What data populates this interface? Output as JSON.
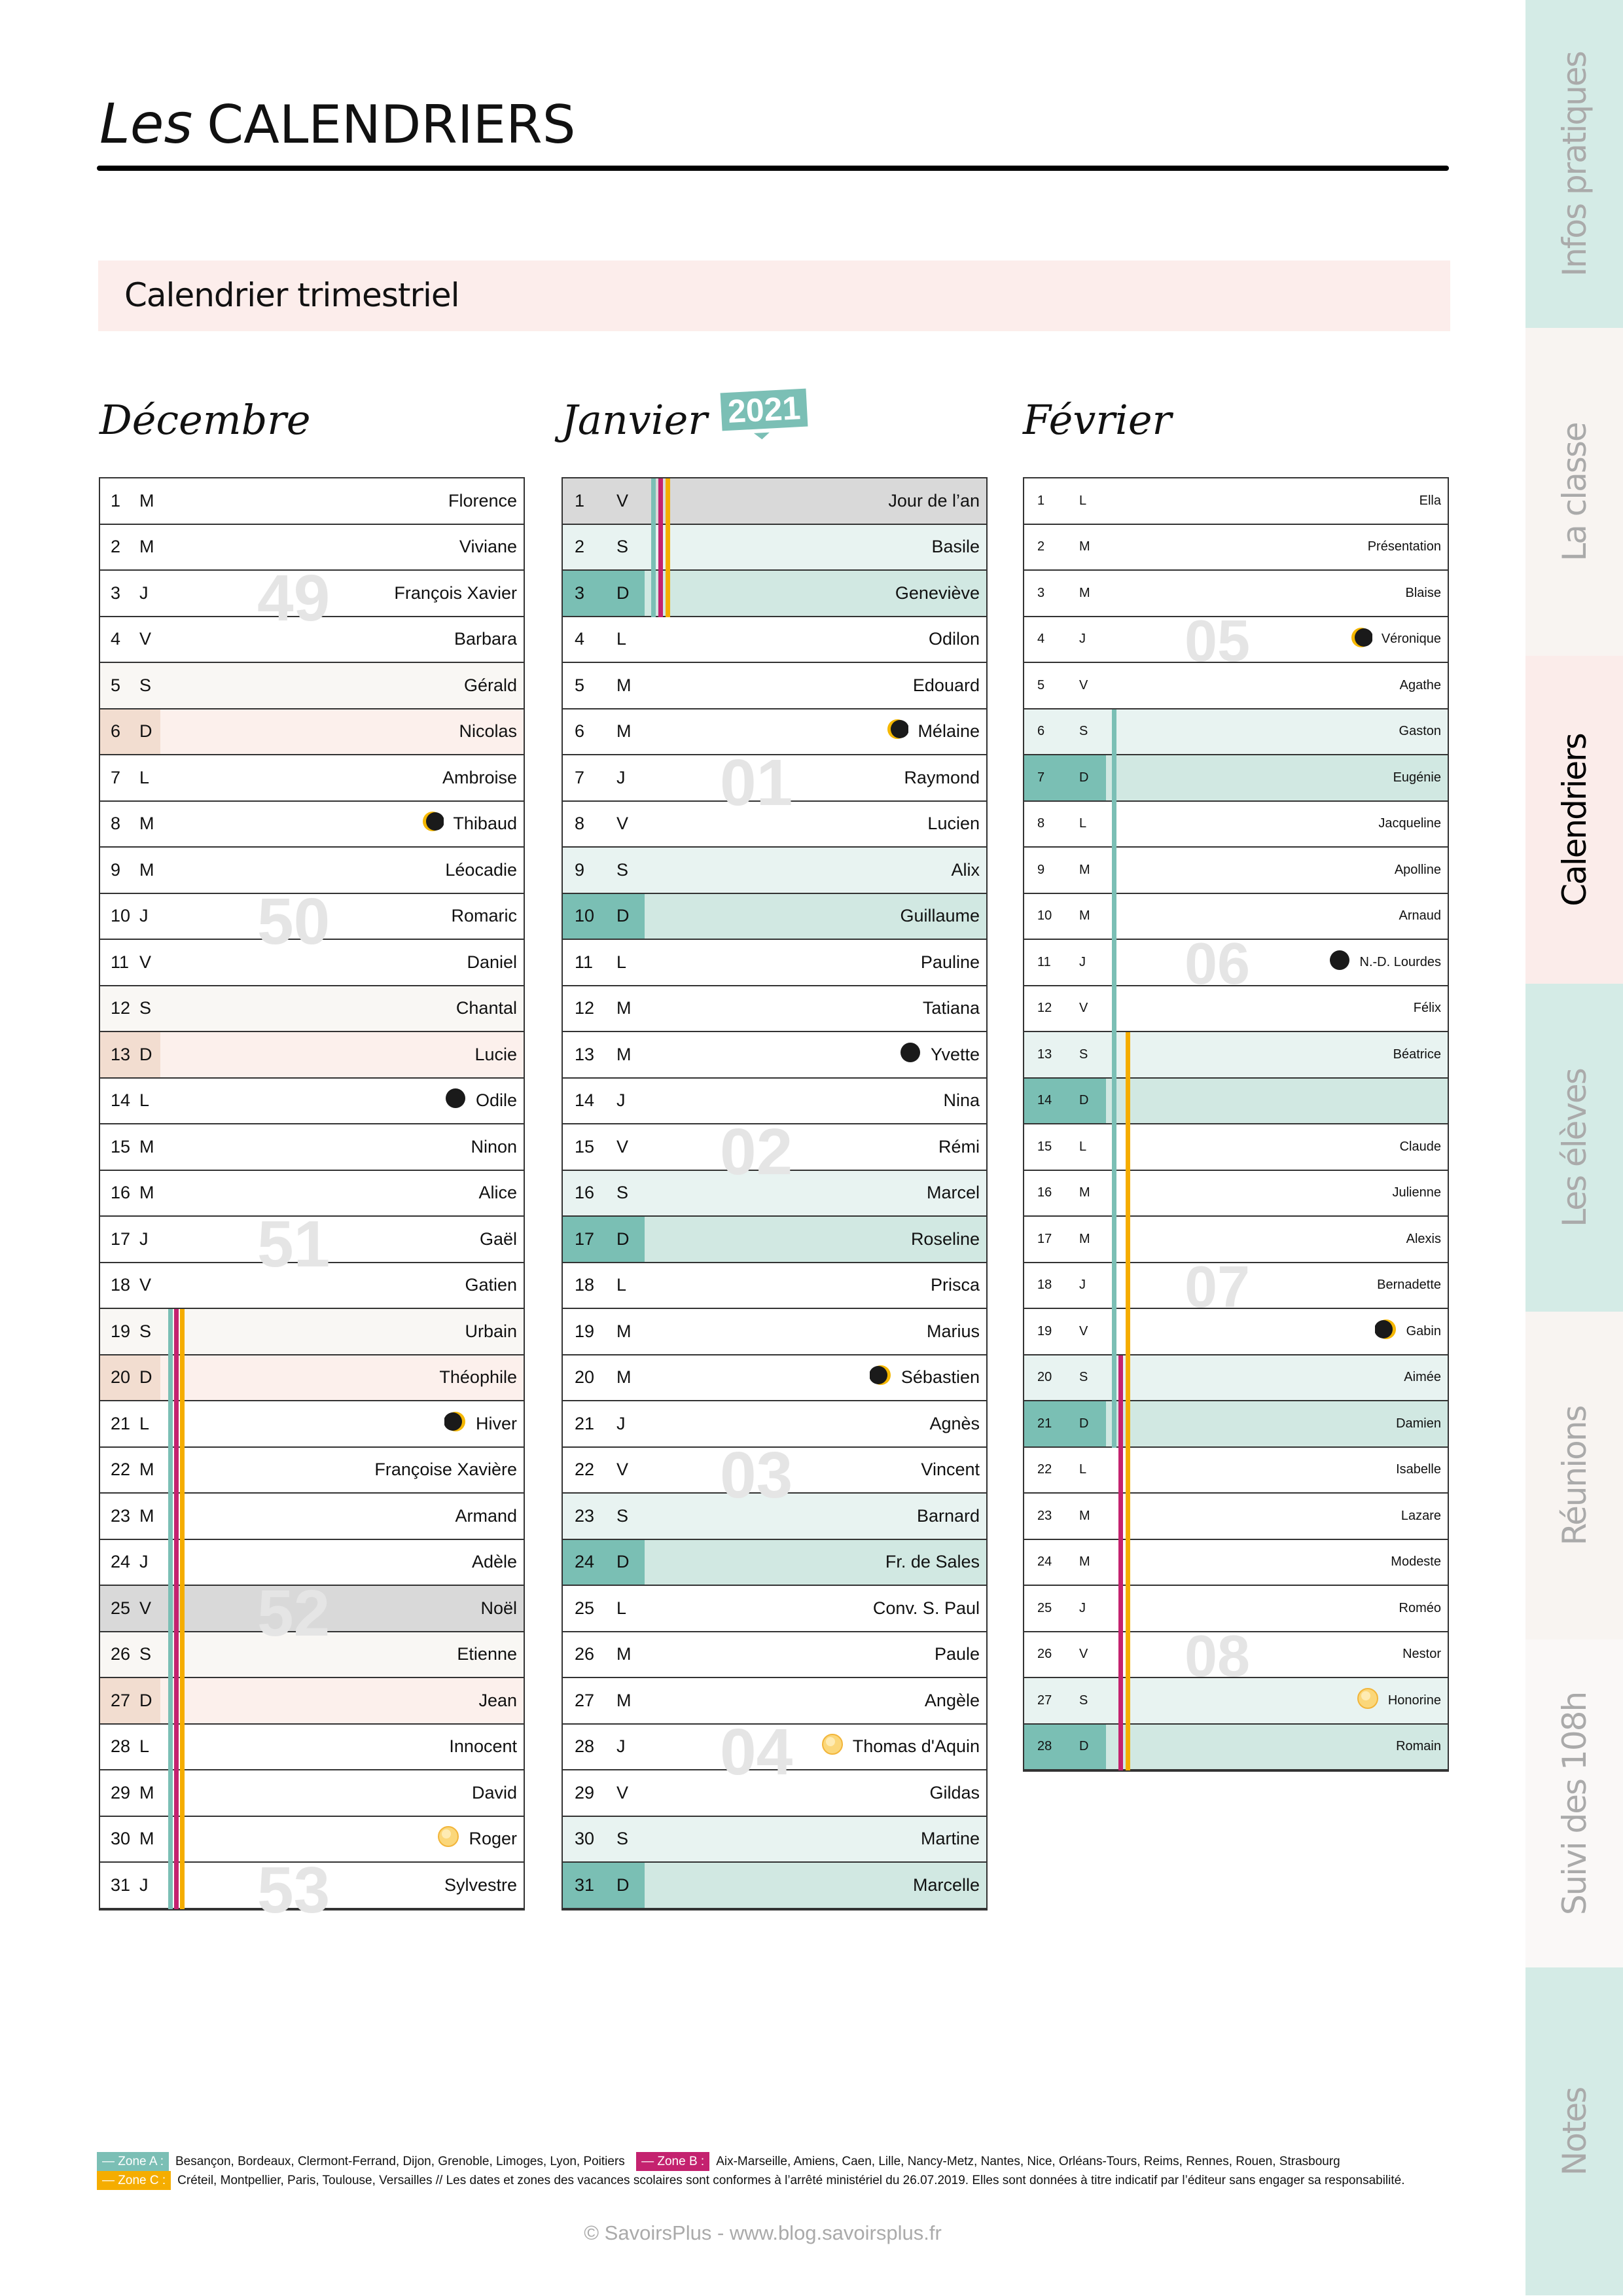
{
  "header": {
    "title_prefix": "Les",
    "title_main": "CALENDRIERS",
    "subtitle": "Calendrier trimestriel"
  },
  "year_badge": "2021",
  "colors": {
    "teal": "#7bbfb5",
    "magenta": "#c4226f",
    "orange": "#f5ad00"
  },
  "months": [
    {
      "id": "dec",
      "title": "Décembre",
      "weeks": [
        {
          "label": "49",
          "day": 3
        },
        {
          "label": "50",
          "day": 10
        },
        {
          "label": "51",
          "day": 17
        },
        {
          "label": "52",
          "day": 25
        },
        {
          "label": "53",
          "day": 31
        }
      ],
      "zones": [
        {
          "zone": "A",
          "from": 19,
          "to": 31
        },
        {
          "zone": "B",
          "from": 19,
          "to": 31
        },
        {
          "zone": "C",
          "from": 19,
          "to": 31
        }
      ],
      "holidays": [
        25
      ],
      "days": [
        [
          "1",
          "M",
          "Florence"
        ],
        [
          "2",
          "M",
          "Viviane"
        ],
        [
          "3",
          "J",
          "François Xavier"
        ],
        [
          "4",
          "V",
          "Barbara"
        ],
        [
          "5",
          "S",
          "Gérald"
        ],
        [
          "6",
          "D",
          "Nicolas"
        ],
        [
          "7",
          "L",
          "Ambroise"
        ],
        [
          "8",
          "M",
          "Thibaud",
          "last-quarter"
        ],
        [
          "9",
          "M",
          "Léocadie"
        ],
        [
          "10",
          "J",
          "Romaric"
        ],
        [
          "11",
          "V",
          "Daniel"
        ],
        [
          "12",
          "S",
          "Chantal"
        ],
        [
          "13",
          "D",
          "Lucie"
        ],
        [
          "14",
          "L",
          "Odile",
          "new"
        ],
        [
          "15",
          "M",
          "Ninon"
        ],
        [
          "16",
          "M",
          "Alice"
        ],
        [
          "17",
          "J",
          "Gaël"
        ],
        [
          "18",
          "V",
          "Gatien"
        ],
        [
          "19",
          "S",
          "Urbain"
        ],
        [
          "20",
          "D",
          "Théophile"
        ],
        [
          "21",
          "L",
          "Hiver",
          "first-quarter"
        ],
        [
          "22",
          "M",
          "Françoise Xavière"
        ],
        [
          "23",
          "M",
          "Armand"
        ],
        [
          "24",
          "J",
          "Adèle"
        ],
        [
          "25",
          "V",
          "Noël"
        ],
        [
          "26",
          "S",
          "Etienne"
        ],
        [
          "27",
          "D",
          "Jean"
        ],
        [
          "28",
          "L",
          "Innocent"
        ],
        [
          "29",
          "M",
          "David"
        ],
        [
          "30",
          "M",
          "Roger",
          "full"
        ],
        [
          "31",
          "J",
          "Sylvestre"
        ]
      ]
    },
    {
      "id": "jan",
      "title": "Janvier",
      "weeks": [
        {
          "label": "01",
          "day": 7
        },
        {
          "label": "02",
          "day": 15
        },
        {
          "label": "03",
          "day": 22
        },
        {
          "label": "04",
          "day": 28
        }
      ],
      "zones": [
        {
          "zone": "A",
          "from": 1,
          "to": 3
        },
        {
          "zone": "B",
          "from": 1,
          "to": 3
        },
        {
          "zone": "C",
          "from": 1,
          "to": 3
        }
      ],
      "holidays": [
        1
      ],
      "days": [
        [
          "1",
          "V",
          "Jour de l’an"
        ],
        [
          "2",
          "S",
          "Basile"
        ],
        [
          "3",
          "D",
          "Geneviève"
        ],
        [
          "4",
          "L",
          "Odilon"
        ],
        [
          "5",
          "M",
          "Edouard"
        ],
        [
          "6",
          "M",
          "Mélaine",
          "last-quarter"
        ],
        [
          "7",
          "J",
          "Raymond"
        ],
        [
          "8",
          "V",
          "Lucien"
        ],
        [
          "9",
          "S",
          "Alix"
        ],
        [
          "10",
          "D",
          "Guillaume"
        ],
        [
          "11",
          "L",
          "Pauline"
        ],
        [
          "12",
          "M",
          "Tatiana"
        ],
        [
          "13",
          "M",
          "Yvette",
          "new"
        ],
        [
          "14",
          "J",
          "Nina"
        ],
        [
          "15",
          "V",
          "Rémi"
        ],
        [
          "16",
          "S",
          "Marcel"
        ],
        [
          "17",
          "D",
          "Roseline"
        ],
        [
          "18",
          "L",
          "Prisca"
        ],
        [
          "19",
          "M",
          "Marius"
        ],
        [
          "20",
          "M",
          "Sébastien",
          "first-quarter"
        ],
        [
          "21",
          "J",
          "Agnès"
        ],
        [
          "22",
          "V",
          "Vincent"
        ],
        [
          "23",
          "S",
          "Barnard"
        ],
        [
          "24",
          "D",
          "Fr. de Sales"
        ],
        [
          "25",
          "L",
          "Conv. S. Paul"
        ],
        [
          "26",
          "M",
          "Paule"
        ],
        [
          "27",
          "M",
          "Angèle"
        ],
        [
          "28",
          "J",
          "Thomas d'Aquin",
          "full"
        ],
        [
          "29",
          "V",
          "Gildas"
        ],
        [
          "30",
          "S",
          "Martine"
        ],
        [
          "31",
          "D",
          "Marcelle"
        ]
      ]
    },
    {
      "id": "feb",
      "title": "Février",
      "weeks": [
        {
          "label": "05",
          "day": 4
        },
        {
          "label": "06",
          "day": 11
        },
        {
          "label": "07",
          "day": 18
        },
        {
          "label": "08",
          "day": 26
        }
      ],
      "zones": [
        {
          "zone": "A",
          "from": 6,
          "to": 21
        },
        {
          "zone": "B",
          "from": 20,
          "to": 28
        },
        {
          "zone": "C",
          "from": 13,
          "to": 28
        }
      ],
      "holidays": [],
      "days": [
        [
          "1",
          "L",
          "Ella"
        ],
        [
          "2",
          "M",
          "Présentation"
        ],
        [
          "3",
          "M",
          "Blaise"
        ],
        [
          "4",
          "J",
          "Véronique",
          "last-quarter"
        ],
        [
          "5",
          "V",
          "Agathe"
        ],
        [
          "6",
          "S",
          "Gaston"
        ],
        [
          "7",
          "D",
          "Eugénie"
        ],
        [
          "8",
          "L",
          "Jacqueline"
        ],
        [
          "9",
          "M",
          "Apolline"
        ],
        [
          "10",
          "M",
          "Arnaud"
        ],
        [
          "11",
          "J",
          "N.-D. Lourdes",
          "new"
        ],
        [
          "12",
          "V",
          "Félix"
        ],
        [
          "13",
          "S",
          "Béatrice"
        ],
        [
          "14",
          "D",
          ""
        ],
        [
          "15",
          "L",
          "Claude"
        ],
        [
          "16",
          "M",
          "Julienne"
        ],
        [
          "17",
          "M",
          "Alexis"
        ],
        [
          "18",
          "J",
          "Bernadette"
        ],
        [
          "19",
          "V",
          "Gabin",
          "first-quarter"
        ],
        [
          "20",
          "S",
          "Aimée"
        ],
        [
          "21",
          "D",
          "Damien"
        ],
        [
          "22",
          "L",
          "Isabelle"
        ],
        [
          "23",
          "M",
          "Lazare"
        ],
        [
          "24",
          "M",
          "Modeste"
        ],
        [
          "25",
          "J",
          "Roméo"
        ],
        [
          "26",
          "V",
          "Nestor"
        ],
        [
          "27",
          "S",
          "Honorine",
          "full"
        ],
        [
          "28",
          "D",
          "Romain"
        ]
      ]
    }
  ],
  "legend": {
    "zone_a_label": "— Zone A :",
    "zone_a_text": "Besançon, Bordeaux, Clermont-Ferrand, Dijon, Grenoble, Limoges, Lyon, Poitiers",
    "zone_b_label": "— Zone B :",
    "zone_b_text": "Aix-Marseille, Amiens, Caen, Lille, Nancy-Metz, Nantes, Nice, Orléans-Tours, Reims, Rennes, Rouen, Strasbourg",
    "zone_c_label": "— Zone C :",
    "zone_c_text": "Créteil, Montpellier, Paris, Toulouse, Versailles // Les dates et zones des vacances scolaires sont conformes à l’arrêté ministériel du 26.07.2019. Elles sont données à titre indicatif par l’éditeur sans engager sa responsabilité."
  },
  "footer": "© SavoirsPlus - www.blog.savoirsplus.fr",
  "sidebar": {
    "tabs": [
      {
        "label": "Infos pratiques",
        "bg": "#d4ebe6"
      },
      {
        "label": "La classe",
        "bg": "#f8f4f1"
      },
      {
        "label": "Calendriers",
        "bg": "#fbecea",
        "active": true
      },
      {
        "label": "Les élèves",
        "bg": "#d4ebe6"
      },
      {
        "label": "Réunions",
        "bg": "#f8f4f1"
      },
      {
        "label": "Suivi des 108h",
        "bg": "#faf8f7"
      },
      {
        "label": "Notes",
        "bg": "#d4ebe6"
      }
    ]
  }
}
